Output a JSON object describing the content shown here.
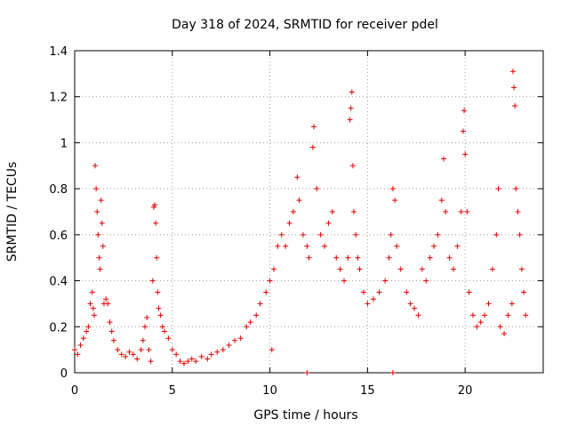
{
  "chart_data": {
    "type": "scatter",
    "title": "Day 318 of 2024, SRMTID for receiver pdel",
    "xlabel": "GPS time / hours",
    "ylabel": "SRMTID / TECUs",
    "xlim": [
      0,
      24
    ],
    "ylim": [
      0,
      1.4
    ],
    "x_ticks": [
      0,
      5,
      10,
      15,
      20
    ],
    "x_tick_labels": [
      "0",
      "5",
      "10",
      "15",
      "20"
    ],
    "y_ticks": [
      0,
      0.2,
      0.4,
      0.6,
      0.8,
      1.0,
      1.2,
      1.4
    ],
    "y_tick_labels": [
      "0",
      "0.2",
      "0.4",
      "0.6",
      "0.8",
      "1",
      "1.2",
      "1.4"
    ],
    "grid": true,
    "marker": "+",
    "color": "#e00000",
    "series": [
      {
        "name": "SRMTID",
        "points": [
          [
            0.0,
            0.1
          ],
          [
            0.15,
            0.08
          ],
          [
            0.3,
            0.12
          ],
          [
            0.45,
            0.15
          ],
          [
            0.6,
            0.18
          ],
          [
            0.7,
            0.2
          ],
          [
            0.8,
            0.3
          ],
          [
            0.9,
            0.35
          ],
          [
            0.95,
            0.28
          ],
          [
            1.0,
            0.25
          ],
          [
            1.05,
            0.9
          ],
          [
            1.1,
            0.8
          ],
          [
            1.15,
            0.7
          ],
          [
            1.2,
            0.6
          ],
          [
            1.25,
            0.5
          ],
          [
            1.3,
            0.45
          ],
          [
            1.35,
            0.75
          ],
          [
            1.4,
            0.65
          ],
          [
            1.45,
            0.55
          ],
          [
            1.5,
            0.3
          ],
          [
            1.6,
            0.32
          ],
          [
            1.7,
            0.3
          ],
          [
            1.8,
            0.22
          ],
          [
            1.9,
            0.18
          ],
          [
            2.0,
            0.14
          ],
          [
            2.2,
            0.1
          ],
          [
            2.4,
            0.08
          ],
          [
            2.6,
            0.07
          ],
          [
            2.8,
            0.09
          ],
          [
            3.0,
            0.08
          ],
          [
            3.2,
            0.06
          ],
          [
            3.4,
            0.1
          ],
          [
            3.5,
            0.14
          ],
          [
            3.6,
            0.2
          ],
          [
            3.7,
            0.24
          ],
          [
            3.8,
            0.1
          ],
          [
            3.9,
            0.05
          ],
          [
            4.0,
            0.4
          ],
          [
            4.05,
            0.72
          ],
          [
            4.1,
            0.73
          ],
          [
            4.15,
            0.65
          ],
          [
            4.2,
            0.5
          ],
          [
            4.25,
            0.35
          ],
          [
            4.3,
            0.28
          ],
          [
            4.4,
            0.25
          ],
          [
            4.5,
            0.2
          ],
          [
            4.6,
            0.18
          ],
          [
            4.8,
            0.15
          ],
          [
            5.0,
            0.1
          ],
          [
            5.2,
            0.08
          ],
          [
            5.4,
            0.05
          ],
          [
            5.6,
            0.04
          ],
          [
            5.8,
            0.05
          ],
          [
            6.0,
            0.06
          ],
          [
            6.2,
            0.05
          ],
          [
            6.5,
            0.07
          ],
          [
            6.8,
            0.06
          ],
          [
            7.0,
            0.08
          ],
          [
            7.3,
            0.09
          ],
          [
            7.6,
            0.1
          ],
          [
            7.9,
            0.12
          ],
          [
            8.2,
            0.14
          ],
          [
            8.5,
            0.15
          ],
          [
            8.8,
            0.2
          ],
          [
            9.0,
            0.22
          ],
          [
            9.3,
            0.25
          ],
          [
            9.5,
            0.3
          ],
          [
            9.8,
            0.35
          ],
          [
            10.0,
            0.4
          ],
          [
            10.1,
            0.1
          ],
          [
            10.2,
            0.45
          ],
          [
            10.4,
            0.55
          ],
          [
            10.6,
            0.6
          ],
          [
            10.8,
            0.55
          ],
          [
            11.0,
            0.65
          ],
          [
            11.2,
            0.7
          ],
          [
            11.4,
            0.85
          ],
          [
            11.5,
            0.75
          ],
          [
            11.7,
            0.6
          ],
          [
            11.9,
            0.55
          ],
          [
            12.0,
            0.5
          ],
          [
            12.2,
            0.98
          ],
          [
            12.25,
            1.07
          ],
          [
            12.4,
            0.8
          ],
          [
            12.6,
            0.6
          ],
          [
            12.8,
            0.55
          ],
          [
            13.0,
            0.65
          ],
          [
            13.2,
            0.7
          ],
          [
            13.4,
            0.5
          ],
          [
            13.6,
            0.45
          ],
          [
            13.8,
            0.4
          ],
          [
            14.0,
            0.5
          ],
          [
            14.1,
            1.1
          ],
          [
            14.15,
            1.15
          ],
          [
            14.2,
            1.22
          ],
          [
            14.25,
            0.9
          ],
          [
            14.3,
            0.7
          ],
          [
            14.4,
            0.6
          ],
          [
            14.5,
            0.5
          ],
          [
            14.6,
            0.45
          ],
          [
            14.8,
            0.35
          ],
          [
            15.0,
            0.3
          ],
          [
            15.3,
            0.32
          ],
          [
            15.6,
            0.35
          ],
          [
            15.9,
            0.4
          ],
          [
            16.1,
            0.5
          ],
          [
            16.2,
            0.6
          ],
          [
            16.3,
            0.8
          ],
          [
            16.4,
            0.75
          ],
          [
            16.5,
            0.55
          ],
          [
            16.7,
            0.45
          ],
          [
            17.0,
            0.35
          ],
          [
            17.2,
            0.3
          ],
          [
            17.4,
            0.28
          ],
          [
            17.6,
            0.25
          ],
          [
            17.8,
            0.45
          ],
          [
            18.0,
            0.4
          ],
          [
            18.2,
            0.5
          ],
          [
            18.4,
            0.55
          ],
          [
            18.6,
            0.6
          ],
          [
            18.8,
            0.75
          ],
          [
            18.9,
            0.93
          ],
          [
            19.0,
            0.7
          ],
          [
            19.2,
            0.5
          ],
          [
            19.4,
            0.45
          ],
          [
            19.6,
            0.55
          ],
          [
            19.8,
            0.7
          ],
          [
            19.9,
            1.05
          ],
          [
            19.95,
            1.14
          ],
          [
            20.0,
            0.95
          ],
          [
            20.1,
            0.7
          ],
          [
            20.2,
            0.35
          ],
          [
            20.4,
            0.25
          ],
          [
            20.6,
            0.2
          ],
          [
            20.8,
            0.22
          ],
          [
            21.0,
            0.25
          ],
          [
            21.2,
            0.3
          ],
          [
            21.4,
            0.45
          ],
          [
            21.6,
            0.6
          ],
          [
            21.7,
            0.8
          ],
          [
            21.8,
            0.2
          ],
          [
            22.0,
            0.17
          ],
          [
            22.2,
            0.25
          ],
          [
            22.4,
            0.3
          ],
          [
            22.45,
            1.31
          ],
          [
            22.5,
            1.24
          ],
          [
            22.55,
            1.16
          ],
          [
            22.6,
            0.8
          ],
          [
            22.7,
            0.7
          ],
          [
            22.8,
            0.6
          ],
          [
            22.9,
            0.45
          ],
          [
            23.0,
            0.35
          ],
          [
            23.1,
            0.25
          ],
          [
            11.9,
            0.0
          ],
          [
            16.3,
            0.0
          ]
        ]
      }
    ]
  }
}
